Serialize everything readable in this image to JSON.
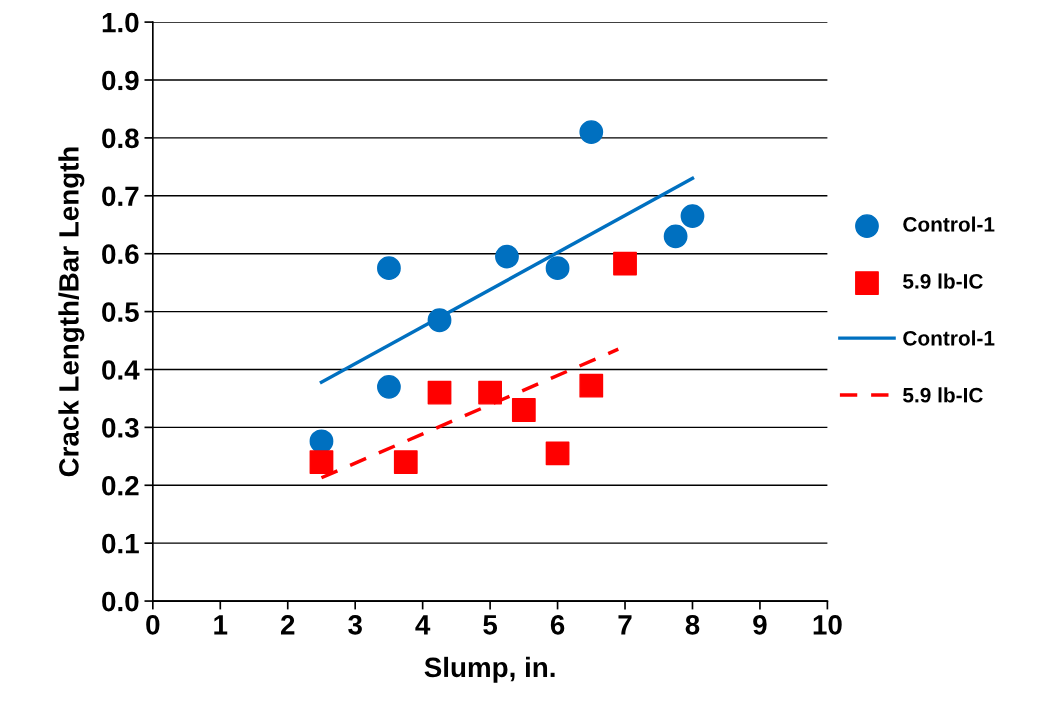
{
  "chart_data": {
    "type": "scatter",
    "xlabel": "Slump, in.",
    "ylabel": "Crack Length/Bar Length",
    "xlim": [
      0,
      10
    ],
    "xticks": [
      0,
      1,
      2,
      3,
      4,
      5,
      6,
      7,
      8,
      9,
      10
    ],
    "ylim": [
      0,
      1
    ],
    "yticks": [
      {
        "value": 0,
        "label": "0.0"
      },
      0.1,
      0.2,
      0.3,
      0.4,
      0.5,
      0.6,
      0.7,
      0.8,
      0.9,
      {
        "value": 1,
        "label": "1.0"
      }
    ],
    "grid": "y",
    "legend": "right",
    "series": [
      {
        "name": "Control-1",
        "marker": "circle",
        "color": "#0070c0",
        "x": [
          2.5,
          3.5,
          3.5,
          4.25,
          5.25,
          6,
          6.5,
          7.75,
          8
        ],
        "values": [
          0.276,
          0.575,
          0.37,
          0.485,
          0.595,
          0.575,
          0.81,
          0.63,
          0.665
        ]
      },
      {
        "name": "5.9 lb-IC",
        "marker": "square",
        "color": "#ff0000",
        "x": [
          2.5,
          3.75,
          4.25,
          5,
          5.5,
          6,
          6.5,
          7
        ],
        "values": [
          0.24,
          0.24,
          0.36,
          0.36,
          0.33,
          0.255,
          0.372,
          0.583
        ]
      },
      {
        "name": "Control-1",
        "type": "line",
        "line_style": "solid",
        "color": "#0070c0",
        "x": [
          2.5,
          8
        ],
        "values": [
          0.378,
          0.73
        ]
      },
      {
        "name": "5.9 lb-IC",
        "type": "line",
        "line_style": "dashed",
        "color": "#ff0000",
        "x": [
          2.5,
          6.9
        ],
        "values": [
          0.213,
          0.435
        ]
      }
    ]
  }
}
